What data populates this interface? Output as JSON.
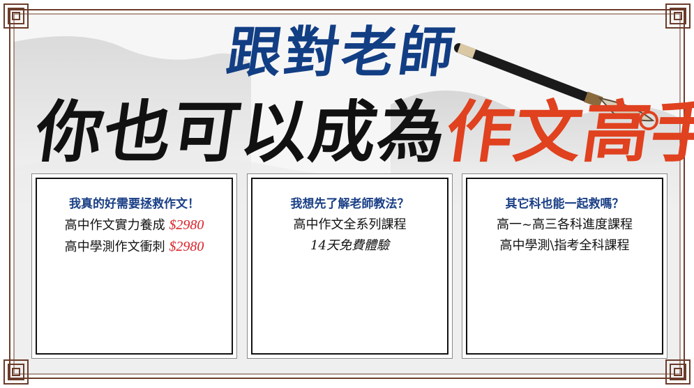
{
  "banner": {
    "title_line1": "跟對老師",
    "title_line2_black": "你也可以成為",
    "title_line2_red": "作文高手"
  },
  "cards": [
    {
      "question": "我真的好需要拯救作文！",
      "rows": [
        {
          "text": "高中作文實力養成",
          "price": "$2980"
        },
        {
          "text": "高中學測作文衝刺",
          "price": "$2980"
        }
      ]
    },
    {
      "question": "我想先了解老師教法？",
      "rows": [
        {
          "text": "高中作文全系列課程"
        },
        {
          "text": "14天免費體驗"
        }
      ]
    },
    {
      "question": "其它科也能一起救嗎？",
      "rows": [
        {
          "text": "高一~高三各科進度課程"
        },
        {
          "text": "高中學測\\指考全科課程"
        }
      ]
    }
  ],
  "colors": {
    "title_blue": "#123e84",
    "title_red": "#e0411f",
    "price_red": "#d91f26",
    "frame_brown": "#6b3b2a"
  }
}
